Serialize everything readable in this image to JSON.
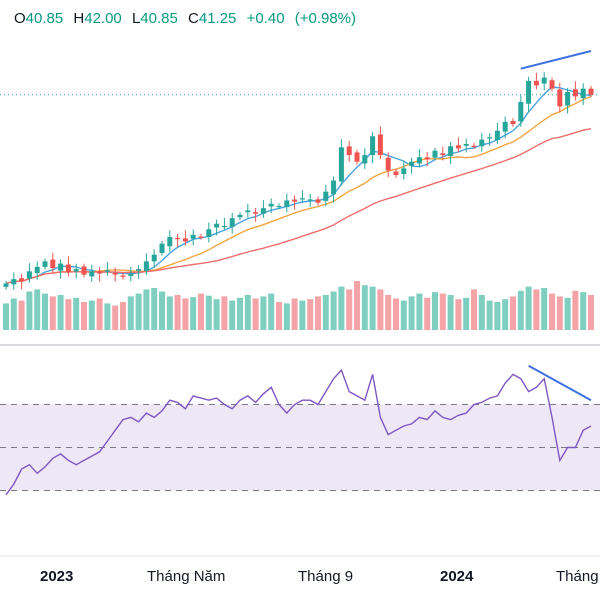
{
  "ohlc": {
    "open_label": "O",
    "open": "40.85",
    "high_label": "H",
    "high": "42.00",
    "low_label": "L",
    "low": "40.85",
    "close_label": "C",
    "close": "41.25",
    "change": "+0.40",
    "change_pct": "(+0.98%)"
  },
  "x_axis_labels": [
    {
      "text": "2023",
      "major": true
    },
    {
      "text": "Tháng Năm",
      "major": false
    },
    {
      "text": "Tháng 9",
      "major": false
    },
    {
      "text": "2024",
      "major": true
    },
    {
      "text": "Tháng",
      "major": false
    }
  ],
  "colors": {
    "up": "#26a69a",
    "down": "#ef5350",
    "volume_up": "#7fcfc0",
    "volume_down": "#f4a3a6",
    "ma_fast": "#4aa3df",
    "ma_mid": "#f2a541",
    "ma_slow": "#ef6f6c",
    "rsi": "#7e57c2",
    "rsi_band": "#ede7f6",
    "trendline": "#3f6fe0",
    "last_price_line": "#26a69a"
  },
  "chart_data": {
    "type": "candlestick",
    "title": "",
    "weeks_per_candle": 1,
    "price_scale": {
      "min": 20,
      "max": 48
    },
    "volume_scale": {
      "min": 0,
      "max": 100
    },
    "rsi_scale": {
      "min": 0,
      "max": 100,
      "levels": [
        70,
        50,
        30
      ]
    },
    "last_close": 41.25,
    "close": [
      24.2,
      24.6,
      24.4,
      25.3,
      25.7,
      26.2,
      25.6,
      26.0,
      25.2,
      25.5,
      25.0,
      25.3,
      25.1,
      25.4,
      25.0,
      24.8,
      25.1,
      25.5,
      26.2,
      26.8,
      27.8,
      28.4,
      28.2,
      28.0,
      28.6,
      28.4,
      29.1,
      29.6,
      29.4,
      30.1,
      30.4,
      30.8,
      30.5,
      31.0,
      31.4,
      31.2,
      31.7,
      31.6,
      31.9,
      31.8,
      31.5,
      32.5,
      33.5,
      36.5,
      35.8,
      35.2,
      35.8,
      37.5,
      35.8,
      34.4,
      34.0,
      34.6,
      35.2,
      35.6,
      35.4,
      36.2,
      35.8,
      36.6,
      36.4,
      36.8,
      36.6,
      37.2,
      37.4,
      38.0,
      38.8,
      38.6,
      40.6,
      42.5,
      42.1,
      42.8,
      41.8,
      40.2,
      41.5,
      41.1,
      41.8,
      41.25
    ],
    "volume": [
      38,
      45,
      42,
      55,
      58,
      52,
      48,
      50,
      44,
      46,
      40,
      42,
      45,
      38,
      35,
      40,
      48,
      52,
      58,
      60,
      55,
      48,
      50,
      45,
      47,
      52,
      49,
      44,
      48,
      42,
      46,
      50,
      45,
      48,
      52,
      40,
      38,
      45,
      42,
      44,
      48,
      50,
      55,
      62,
      58,
      70,
      64,
      62,
      58,
      50,
      45,
      42,
      48,
      52,
      46,
      54,
      52,
      50,
      44,
      46,
      58,
      50,
      42,
      40,
      44,
      48,
      56,
      62,
      58,
      60,
      52,
      48,
      46,
      56,
      54,
      50
    ],
    "rsi": [
      28,
      33,
      40,
      42,
      38,
      41,
      45,
      47,
      44,
      42,
      44,
      46,
      48,
      53,
      58,
      63,
      64,
      62,
      66,
      64,
      67,
      72,
      71,
      68,
      74,
      73,
      72,
      73,
      70,
      68,
      72,
      74,
      71,
      75,
      78,
      70,
      66,
      70,
      72,
      72,
      70,
      76,
      82,
      86,
      76,
      74,
      72,
      84,
      64,
      56,
      58,
      60,
      61,
      64,
      63,
      67,
      64,
      63,
      65,
      66,
      70,
      71,
      73,
      74,
      80,
      84,
      82,
      76,
      78,
      82,
      64,
      44,
      50,
      50,
      58,
      60
    ],
    "trendlines": [
      {
        "pane": "price",
        "from": {
          "index": 66,
          "value": 43.6
        },
        "to": {
          "index": 75,
          "value": 45.2
        }
      },
      {
        "pane": "rsi",
        "from": {
          "index": 67,
          "value": 88
        },
        "to": {
          "index": 75,
          "value": 72
        }
      }
    ]
  }
}
